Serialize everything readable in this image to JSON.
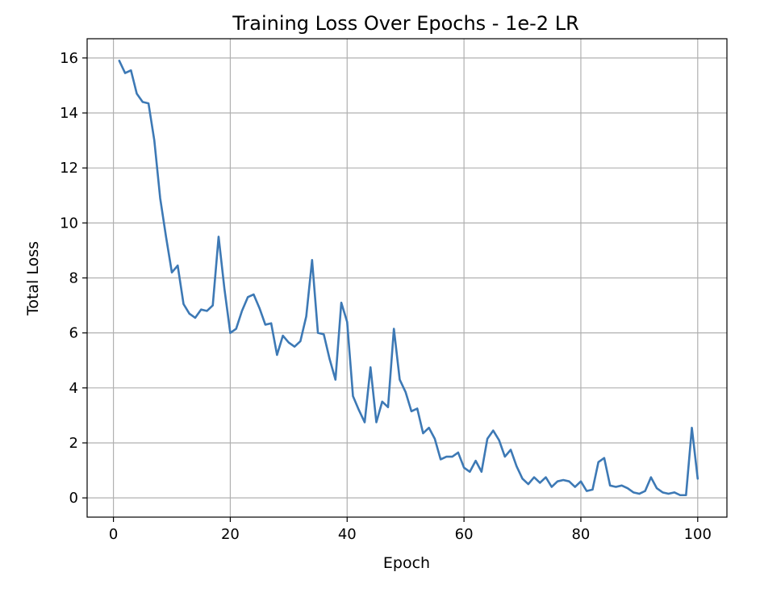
{
  "chart_data": {
    "type": "line",
    "title": "Training Loss Over Epochs - 1e-2 LR",
    "xlabel": "Epoch",
    "ylabel": "Total Loss",
    "xlim": [
      -4.5,
      105
    ],
    "ylim": [
      -0.7,
      16.7
    ],
    "xticks": [
      0,
      20,
      40,
      60,
      80,
      100
    ],
    "yticks": [
      0,
      2,
      4,
      6,
      8,
      10,
      12,
      14,
      16
    ],
    "grid": true,
    "line_color": "#3d79b5",
    "series": [
      {
        "x": [
          1,
          2,
          3,
          4,
          5,
          6,
          7,
          8,
          9,
          10,
          11,
          12,
          13,
          14,
          15,
          16,
          17,
          18,
          19,
          20,
          21,
          22,
          23,
          24,
          25,
          26,
          27,
          28,
          29,
          30,
          31,
          32,
          33,
          34,
          35,
          36,
          37,
          38,
          39,
          40,
          41,
          42,
          43,
          44,
          45,
          46,
          47,
          48,
          49,
          50,
          51,
          52,
          53,
          54,
          55,
          56,
          57,
          58,
          59,
          60,
          61,
          62,
          63,
          64,
          65,
          66,
          67,
          68,
          69,
          70,
          71,
          72,
          73,
          74,
          75,
          76,
          77,
          78,
          79,
          80,
          81,
          82,
          83,
          84,
          85,
          86,
          87,
          88,
          89,
          90,
          91,
          92,
          93,
          94,
          95,
          96,
          97,
          98,
          99,
          100
        ],
        "values": [
          15.9,
          15.45,
          15.55,
          14.7,
          14.4,
          14.35,
          13.0,
          10.9,
          9.5,
          8.2,
          8.45,
          7.05,
          6.7,
          6.55,
          6.85,
          6.8,
          7.0,
          9.5,
          7.6,
          6.0,
          6.15,
          6.8,
          7.3,
          7.4,
          6.9,
          6.3,
          6.35,
          5.2,
          5.9,
          5.65,
          5.5,
          5.7,
          6.6,
          8.65,
          6.0,
          5.95,
          5.05,
          4.3,
          7.1,
          6.4,
          3.7,
          3.2,
          2.75,
          4.75,
          2.75,
          3.5,
          3.3,
          6.15,
          4.3,
          3.85,
          3.15,
          3.25,
          2.35,
          2.55,
          2.15,
          1.4,
          1.5,
          1.5,
          1.65,
          1.1,
          0.95,
          1.35,
          0.95,
          2.15,
          2.45,
          2.1,
          1.5,
          1.75,
          1.15,
          0.7,
          0.5,
          0.75,
          0.55,
          0.75,
          0.4,
          0.6,
          0.65,
          0.6,
          0.4,
          0.6,
          0.25,
          0.3,
          1.3,
          1.45,
          0.45,
          0.4,
          0.45,
          0.35,
          0.2,
          0.15,
          0.25,
          0.75,
          0.35,
          0.2,
          0.15,
          0.2,
          0.1,
          0.1,
          2.55,
          0.7
        ]
      }
    ]
  }
}
